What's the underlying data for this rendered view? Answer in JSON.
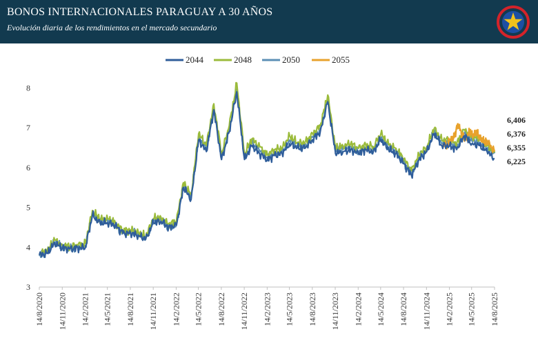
{
  "header": {
    "title": "BONOS INTERNACIONALES PARAGUAY A 30 AÑOS",
    "subtitle": "Evolución diaria de los rendimientos en el mercado secundario",
    "emblem_icon": "paraguay-emblem-star-icon"
  },
  "chart_data": {
    "type": "line",
    "title": "BONOS INTERNACIONALES PARAGUAY A 30 AÑOS",
    "subtitle": "Evolución diaria de los rendimientos en el mercado secundario",
    "xlabel": "",
    "ylabel": "",
    "ylim": [
      3,
      8.3
    ],
    "yticks": [
      3,
      4,
      5,
      6,
      7,
      8
    ],
    "xlim": [
      "2020-08-14",
      "2025-08-14"
    ],
    "xticks": [
      "14/8/2020",
      "14/11/2020",
      "14/2/2021",
      "14/5/2021",
      "14/8/2021",
      "14/11/2021",
      "14/2/2022",
      "14/5/2022",
      "14/8/2022",
      "14/11/2022",
      "14/2/2023",
      "14/5/2023",
      "14/8/2023",
      "14/11/2023",
      "14/2/2024",
      "14/5/2024",
      "14/8/2024",
      "14/11/2024",
      "14/2/2025",
      "14/5/2025",
      "14/8/2025"
    ],
    "grid": false,
    "legend": "top-center",
    "end_labels": [
      "6,406",
      "6,376",
      "6,355",
      "6,225"
    ],
    "series": [
      {
        "name": "2044",
        "color": "#2f5d9a",
        "x": [
          "2020-08-14",
          "2020-09-15",
          "2020-10-15",
          "2020-11-15",
          "2020-12-15",
          "2021-01-15",
          "2021-02-15",
          "2021-03-15",
          "2021-04-15",
          "2021-05-15",
          "2021-06-15",
          "2021-07-15",
          "2021-08-15",
          "2021-09-15",
          "2021-10-15",
          "2021-11-15",
          "2021-12-15",
          "2022-01-15",
          "2022-02-15",
          "2022-03-15",
          "2022-04-15",
          "2022-05-15",
          "2022-06-15",
          "2022-07-15",
          "2022-08-15",
          "2022-09-15",
          "2022-10-15",
          "2022-11-15",
          "2022-12-15",
          "2023-01-15",
          "2023-02-15",
          "2023-03-15",
          "2023-04-15",
          "2023-05-15",
          "2023-06-15",
          "2023-07-15",
          "2023-08-15",
          "2023-09-15",
          "2023-10-15",
          "2023-11-15",
          "2023-12-15",
          "2024-01-15",
          "2024-02-15",
          "2024-03-15",
          "2024-04-15",
          "2024-05-15",
          "2024-06-15",
          "2024-07-15",
          "2024-08-15",
          "2024-09-15",
          "2024-10-15",
          "2024-11-15",
          "2024-12-15",
          "2025-01-15",
          "2025-02-15",
          "2025-03-15",
          "2025-04-15",
          "2025-05-15",
          "2025-06-15",
          "2025-07-15",
          "2025-08-14"
        ],
        "values": [
          3.8,
          3.85,
          4.1,
          3.98,
          3.96,
          3.98,
          4.0,
          4.8,
          4.6,
          4.62,
          4.55,
          4.35,
          4.35,
          4.3,
          4.2,
          4.62,
          4.65,
          4.5,
          4.55,
          5.5,
          5.2,
          6.7,
          6.4,
          7.45,
          6.2,
          6.9,
          7.9,
          6.2,
          6.55,
          6.35,
          6.2,
          6.3,
          6.35,
          6.6,
          6.5,
          6.48,
          6.7,
          6.9,
          7.65,
          6.35,
          6.4,
          6.45,
          6.35,
          6.45,
          6.4,
          6.7,
          6.45,
          6.35,
          6.1,
          5.8,
          6.2,
          6.4,
          6.85,
          6.55,
          6.55,
          6.45,
          6.8,
          6.6,
          6.55,
          6.4,
          6.225
        ]
      },
      {
        "name": "2048",
        "color": "#9bbb3b",
        "x": [
          "2020-08-14",
          "2020-09-15",
          "2020-10-15",
          "2020-11-15",
          "2020-12-15",
          "2021-01-15",
          "2021-02-15",
          "2021-03-15",
          "2021-04-15",
          "2021-05-15",
          "2021-06-15",
          "2021-07-15",
          "2021-08-15",
          "2021-09-15",
          "2021-10-15",
          "2021-11-15",
          "2021-12-15",
          "2022-01-15",
          "2022-02-15",
          "2022-03-15",
          "2022-04-15",
          "2022-05-15",
          "2022-06-15",
          "2022-07-15",
          "2022-08-15",
          "2022-09-15",
          "2022-10-15",
          "2022-11-15",
          "2022-12-15",
          "2023-01-15",
          "2023-02-15",
          "2023-03-15",
          "2023-04-15",
          "2023-05-15",
          "2023-06-15",
          "2023-07-15",
          "2023-08-15",
          "2023-09-15",
          "2023-10-15",
          "2023-11-15",
          "2023-12-15",
          "2024-01-15",
          "2024-02-15",
          "2024-03-15",
          "2024-04-15",
          "2024-05-15",
          "2024-06-15",
          "2024-07-15",
          "2024-08-15",
          "2024-09-15",
          "2024-10-15",
          "2024-11-15",
          "2024-12-15",
          "2025-01-15",
          "2025-02-15",
          "2025-03-15",
          "2025-04-15",
          "2025-05-15",
          "2025-06-15",
          "2025-07-15",
          "2025-08-14"
        ],
        "values": [
          3.85,
          3.92,
          4.18,
          4.05,
          4.02,
          4.05,
          4.1,
          4.92,
          4.7,
          4.72,
          4.62,
          4.42,
          4.43,
          4.38,
          4.26,
          4.72,
          4.75,
          4.58,
          4.65,
          5.62,
          5.32,
          6.85,
          6.55,
          7.6,
          6.35,
          7.05,
          8.12,
          6.35,
          6.72,
          6.52,
          6.32,
          6.45,
          6.48,
          6.8,
          6.62,
          6.62,
          6.85,
          7.05,
          7.82,
          6.48,
          6.55,
          6.6,
          6.48,
          6.58,
          6.52,
          6.85,
          6.58,
          6.48,
          6.22,
          5.92,
          6.32,
          6.52,
          6.98,
          6.68,
          6.7,
          6.6,
          6.95,
          6.78,
          6.72,
          6.55,
          6.376
        ]
      },
      {
        "name": "2050",
        "color": "#5b8fb5",
        "x": [
          "2020-08-14",
          "2020-09-15",
          "2020-10-15",
          "2020-11-15",
          "2020-12-15",
          "2021-01-15",
          "2021-02-15",
          "2021-03-15",
          "2021-04-15",
          "2021-05-15",
          "2021-06-15",
          "2021-07-15",
          "2021-08-15",
          "2021-09-15",
          "2021-10-15",
          "2021-11-15",
          "2021-12-15",
          "2022-01-15",
          "2022-02-15",
          "2022-03-15",
          "2022-04-15",
          "2022-05-15",
          "2022-06-15",
          "2022-07-15",
          "2022-08-15",
          "2022-09-15",
          "2022-10-15",
          "2022-11-15",
          "2022-12-15",
          "2023-01-15",
          "2023-02-15",
          "2023-03-15",
          "2023-04-15",
          "2023-05-15",
          "2023-06-15",
          "2023-07-15",
          "2023-08-15",
          "2023-09-15",
          "2023-10-15",
          "2023-11-15",
          "2023-12-15",
          "2024-01-15",
          "2024-02-15",
          "2024-03-15",
          "2024-04-15",
          "2024-05-15",
          "2024-06-15",
          "2024-07-15",
          "2024-08-15",
          "2024-09-15",
          "2024-10-15",
          "2024-11-15",
          "2024-12-15",
          "2025-01-15",
          "2025-02-15",
          "2025-03-15",
          "2025-04-15",
          "2025-05-15",
          "2025-06-15",
          "2025-07-15",
          "2025-08-14"
        ],
        "values": [
          3.78,
          3.88,
          4.13,
          4.0,
          3.98,
          4.0,
          4.03,
          4.85,
          4.63,
          4.66,
          4.57,
          4.37,
          4.38,
          4.33,
          4.22,
          4.66,
          4.68,
          4.53,
          4.58,
          5.55,
          5.25,
          6.76,
          6.46,
          7.5,
          6.26,
          6.96,
          7.97,
          6.26,
          6.62,
          6.42,
          6.24,
          6.36,
          6.4,
          6.68,
          6.55,
          6.53,
          6.76,
          6.95,
          7.72,
          6.4,
          6.46,
          6.52,
          6.4,
          6.5,
          6.45,
          6.76,
          6.5,
          6.4,
          6.14,
          5.84,
          6.25,
          6.45,
          6.9,
          6.6,
          6.61,
          6.52,
          6.86,
          6.68,
          6.63,
          6.47,
          6.355
        ]
      },
      {
        "name": "2055",
        "color": "#e8a22c",
        "x": [
          "2025-01-20",
          "2025-02-05",
          "2025-02-20",
          "2025-03-05",
          "2025-03-20",
          "2025-04-05",
          "2025-04-20",
          "2025-05-05",
          "2025-05-20",
          "2025-06-05",
          "2025-06-20",
          "2025-07-05",
          "2025-07-20",
          "2025-08-14"
        ],
        "values": [
          6.6,
          6.55,
          6.7,
          6.75,
          7.1,
          6.85,
          6.7,
          6.9,
          6.8,
          6.88,
          6.72,
          6.68,
          6.62,
          6.406
        ]
      }
    ]
  }
}
